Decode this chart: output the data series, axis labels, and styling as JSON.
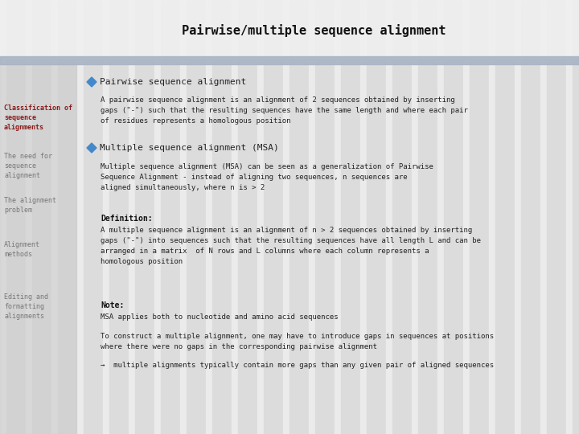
{
  "title": "Pairwise/multiple sequence alignment",
  "bg_color": "#e4e4e4",
  "stripe_color_light": "#ebebeb",
  "stripe_color_dark": "#dcdcdc",
  "header_bar_color": "#a8b4c4",
  "sidebar_bg": "#cccccc",
  "title_fontsize": 11,
  "title_color": "#111111",
  "bullet_color": "#4488cc",
  "bullet1_text": "Pairwise sequence alignment",
  "bullet1_fontsize": 8,
  "bullet2_text": "Multiple sequence alignment (MSA)",
  "bullet2_fontsize": 8,
  "bullet1_body": "A pairwise sequence alignment is an alignment of 2 sequences obtained by inserting\ngaps (\"-\") such that the resulting sequences have the same length and where each pair\nof residues represents a homologous position",
  "bullet2_body": "Multiple sequence alignment (MSA) can be seen as a generalization of Pairwise\nSequence Alignment - instead of aligning two sequences, n sequences are\naligned simultaneously, where n is > 2",
  "def_label": "Definition:",
  "def_body": "A multiple sequence alignment is an alignment of n > 2 sequences obtained by inserting\ngaps (\"-\") into sequences such that the resulting sequences have all length L and can be\narranged in a matrix  of N rows and L columns where each column represents a\nhomologous position",
  "note_label": "Note:",
  "note_body1": "MSA applies both to nucleotide and amino acid sequences",
  "note_body2": "To construct a multiple alignment, one may have to introduce gaps in sequences at positions\nwhere there were no gaps in the corresponding pairwise alignment",
  "note_body3": "→  multiple alignments typically contain more gaps than any given pair of aligned sequences",
  "sidebar_items": [
    {
      "text": "Classification of\nsequence\nalignments",
      "color": "#8b1a1a",
      "bold": true
    },
    {
      "text": "The need for\nsequence\nalignment",
      "color": "#777777",
      "bold": false
    },
    {
      "text": "The alignment\nproblem",
      "color": "#777777",
      "bold": false
    },
    {
      "text": "Alignment\nmethods",
      "color": "#777777",
      "bold": false
    },
    {
      "text": "Editing and\nformatting\nalignments",
      "color": "#777777",
      "bold": false
    }
  ],
  "sidebar_fontsize": 6,
  "body_fontsize": 6.5,
  "label_fontsize": 7
}
